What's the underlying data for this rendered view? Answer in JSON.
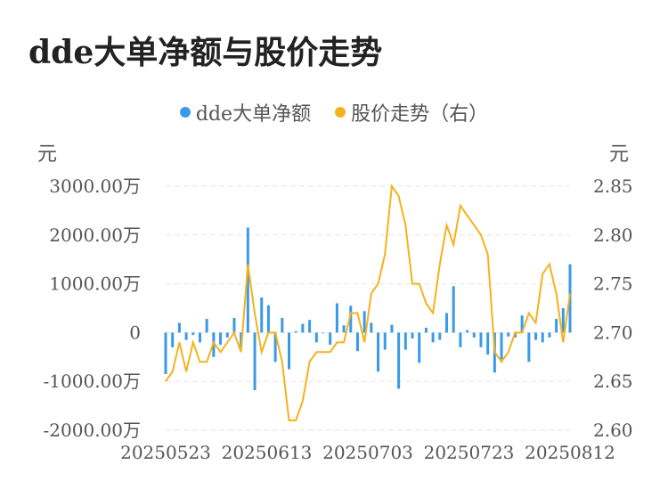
{
  "title": "dde大单净额与股价走势",
  "legend": {
    "series1": "dde大单净额",
    "series2": "股价走势（右）"
  },
  "units": {
    "left": "元",
    "right": "元"
  },
  "colors": {
    "bars": "#3a9ae8",
    "line": "#f5b21c",
    "grid": "#e6e6e6"
  },
  "chart_data": {
    "type": "bar+line",
    "x_ticks": [
      "20250523",
      "20250613",
      "20250703",
      "20250723",
      "20250812"
    ],
    "left_axis": {
      "ticks": [
        "3000.00万",
        "2000.00万",
        "1000.00万",
        "0",
        "-1000.00万",
        "-2000.00万"
      ],
      "range": [
        -2000,
        3000
      ]
    },
    "right_axis": {
      "ticks": [
        "2.85",
        "2.80",
        "2.75",
        "2.70",
        "2.65",
        "2.60"
      ],
      "range": [
        2.6,
        2.85
      ]
    },
    "series": [
      {
        "name": "dde大单净额",
        "values": [
          -850,
          -300,
          200,
          -150,
          -50,
          -200,
          280,
          -500,
          -250,
          -100,
          300,
          -300,
          2150,
          -1180,
          720,
          560,
          -600,
          300,
          -750,
          30,
          180,
          260,
          -200,
          0,
          -250,
          600,
          150,
          550,
          -380,
          440,
          200,
          -800,
          -350,
          160,
          -1150,
          -350,
          -120,
          -620,
          100,
          -200,
          -150,
          400,
          950,
          -300,
          50,
          -100,
          -300,
          -450,
          -820,
          -550,
          -80,
          -100,
          350,
          -600,
          -150,
          -200,
          -100,
          280,
          500,
          1400
        ]
      },
      {
        "name": "股价走势（右）",
        "values": [
          2.65,
          2.66,
          2.69,
          2.66,
          2.69,
          2.67,
          2.67,
          2.69,
          2.68,
          2.69,
          2.7,
          2.68,
          2.77,
          2.72,
          2.68,
          2.7,
          2.7,
          2.67,
          2.61,
          2.61,
          2.63,
          2.67,
          2.68,
          2.68,
          2.68,
          2.69,
          2.69,
          2.72,
          2.72,
          2.69,
          2.74,
          2.75,
          2.78,
          2.85,
          2.84,
          2.81,
          2.75,
          2.75,
          2.73,
          2.72,
          2.77,
          2.81,
          2.79,
          2.83,
          2.82,
          2.81,
          2.8,
          2.78,
          2.68,
          2.67,
          2.68,
          2.7,
          2.7,
          2.72,
          2.71,
          2.76,
          2.77,
          2.74,
          2.69,
          2.74
        ]
      }
    ]
  }
}
